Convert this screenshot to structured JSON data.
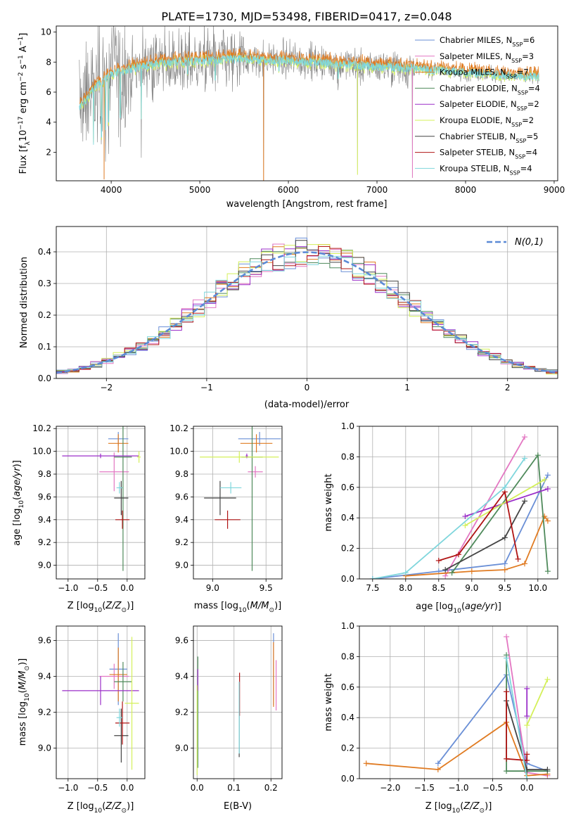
{
  "figure": {
    "title": "PLATE=1730, MJD=53498, FIBERID=0417, z=0.048"
  },
  "series_names": [
    {
      "lib": "Chabrier MILES",
      "n": "6",
      "color": "#6a8fd6"
    },
    {
      "lib": "Salpeter MILES",
      "n": "3",
      "color": "#e377c2"
    },
    {
      "lib": "Kroupa MILES",
      "n": "7",
      "color": "#e07b22"
    },
    {
      "lib": "Chabrier ELODIE",
      "n": "4",
      "color": "#4f8a5b"
    },
    {
      "lib": "Salpeter ELODIE",
      "n": "2",
      "color": "#9b2fc9"
    },
    {
      "lib": "Kroupa ELODIE",
      "n": "2",
      "color": "#d4f05a"
    },
    {
      "lib": "Chabrier STELIB",
      "n": "5",
      "color": "#444444"
    },
    {
      "lib": "Salpeter STELIB",
      "n": "4",
      "color": "#b01414"
    },
    {
      "lib": "Kroupa STELIB",
      "n": "4",
      "color": "#7fd6dc"
    }
  ],
  "chart_data": [
    {
      "id": "spectrum",
      "type": "line",
      "xlabel": "wavelength [Angstrom, rest frame]",
      "ylabel": "Flux [f_λ 10^-17 erg cm^-2 s^-1 A^-1]",
      "xlim": [
        3380,
        9040
      ],
      "ylim": [
        0.1,
        10.4
      ],
      "xticks": [
        4000,
        5000,
        6000,
        7000,
        8000,
        9000
      ],
      "yticks": [
        2,
        4,
        6,
        8,
        10
      ],
      "grid": false,
      "legend": "top-right",
      "observed_color": "#808080",
      "model_color": "#7fd6dc",
      "continuum": [
        [
          3650,
          5.0
        ],
        [
          3800,
          6.2
        ],
        [
          4000,
          7.2
        ],
        [
          4200,
          7.5
        ],
        [
          4500,
          7.9
        ],
        [
          5000,
          8.1
        ],
        [
          5500,
          8.2
        ],
        [
          6000,
          8.1
        ],
        [
          6500,
          7.9
        ],
        [
          7000,
          7.7
        ],
        [
          7400,
          7.6
        ],
        [
          7600,
          7.5
        ],
        [
          8000,
          7.3
        ],
        [
          8500,
          7.1
        ],
        [
          8830,
          7.0
        ]
      ],
      "absorption_lines": [
        [
          3800,
          2.5
        ],
        [
          3889,
          3.0
        ],
        [
          3934,
          3.5
        ],
        [
          3969,
          4.0
        ],
        [
          4102,
          4.3
        ],
        [
          4340,
          4.2
        ],
        [
          4861,
          7.2
        ],
        [
          5175,
          6.8
        ],
        [
          5893,
          7.4
        ],
        [
          6563,
          6.9
        ]
      ],
      "spikes": [
        [
          3920,
          0.2
        ],
        [
          5720,
          0.1
        ],
        [
          6780,
          0.5
        ],
        [
          7400,
          0.3
        ]
      ],
      "noise_end": 7420
    },
    {
      "id": "residual-hist",
      "type": "bar",
      "xlabel": "(data-model)/error",
      "ylabel": "Normed distribution",
      "xlim": [
        -2.5,
        2.5
      ],
      "ylim": [
        0,
        0.48
      ],
      "xticks": [
        -2,
        -1,
        0,
        1,
        2
      ],
      "yticks": [
        0.0,
        0.1,
        0.2,
        0.3,
        0.4
      ],
      "grid": true,
      "legend": "top-right",
      "reference_label": "N(0,1)",
      "bins": 44
    },
    {
      "id": "age-vs-Z",
      "type": "scatter",
      "xlabel": "Z [log10(Z/Z⊙)]",
      "ylabel": "age [log10(age/yr)]",
      "xlim": [
        -1.2,
        0.3
      ],
      "ylim": [
        8.88,
        10.22
      ],
      "xticks": [
        -1.0,
        -0.5,
        0.0
      ],
      "yticks": [
        9.0,
        9.2,
        9.4,
        9.6,
        9.8,
        10.0,
        10.2
      ],
      "grid": true,
      "points": [
        {
          "s": 0,
          "x": -0.15,
          "dx": 0.17,
          "y": 10.11,
          "dy": 0.06
        },
        {
          "s": 1,
          "x": -0.22,
          "dx": 0.25,
          "y": 9.82,
          "dy": 0.17
        },
        {
          "s": 2,
          "x": -0.15,
          "dx": 0.17,
          "y": 10.07,
          "dy": 0.08
        },
        {
          "s": 3,
          "x": -0.07,
          "dx": 0.15,
          "y": 9.95,
          "dy": 1.0
        },
        {
          "s": 4,
          "x": -0.45,
          "dx": 0.65,
          "y": 9.96,
          "dy": 0.02
        },
        {
          "s": 5,
          "x": 0.2,
          "dx": 0.03,
          "y": 9.95,
          "dy": 0.05
        },
        {
          "s": 6,
          "x": -0.1,
          "dx": 0.12,
          "y": 9.59,
          "dy": 0.15
        },
        {
          "s": 7,
          "x": -0.08,
          "dx": 0.12,
          "y": 9.4,
          "dy": 0.08
        },
        {
          "s": 8,
          "x": -0.13,
          "dx": 0.05,
          "y": 9.68,
          "dy": 0.05
        }
      ]
    },
    {
      "id": "age-vs-mass",
      "type": "scatter",
      "xlabel": "mass [log10(M/M⊙)]",
      "ylabel": "",
      "xlim": [
        8.82,
        9.65
      ],
      "ylim": [
        8.88,
        10.22
      ],
      "xticks": [
        9.0,
        9.5
      ],
      "yticks": [
        9.0,
        9.2,
        9.4,
        9.6,
        9.8,
        10.0,
        10.2
      ],
      "grid": true,
      "points": [
        {
          "s": 0,
          "x": 9.44,
          "dx": 0.2,
          "y": 10.11,
          "dy": 0.06
        },
        {
          "s": 1,
          "x": 9.4,
          "dx": 0.07,
          "y": 9.82,
          "dy": 0.05
        },
        {
          "s": 2,
          "x": 9.41,
          "dx": 0.15,
          "y": 10.07,
          "dy": 0.08
        },
        {
          "s": 3,
          "x": 9.37,
          "dx": 0.1,
          "y": 9.95,
          "dy": 1.0
        },
        {
          "s": 4,
          "x": 9.32,
          "dx": 0.01,
          "y": 9.96,
          "dy": 0.02
        },
        {
          "s": 5,
          "x": 9.25,
          "dx": 0.37,
          "y": 9.95,
          "dy": 0.05
        },
        {
          "s": 6,
          "x": 9.07,
          "dx": 0.15,
          "y": 9.59,
          "dy": 0.15
        },
        {
          "s": 7,
          "x": 9.14,
          "dx": 0.12,
          "y": 9.4,
          "dy": 0.08
        },
        {
          "s": 8,
          "x": 9.17,
          "dx": 0.1,
          "y": 9.68,
          "dy": 0.05
        }
      ]
    },
    {
      "id": "mass-weight-vs-age",
      "type": "line",
      "xlabel": "age [log10(age/yr)]",
      "ylabel": "mass weight",
      "xlim": [
        7.3,
        10.3
      ],
      "ylim": [
        0.0,
        1.0
      ],
      "xticks": [
        7.5,
        8.0,
        8.5,
        9.0,
        9.5,
        10.0
      ],
      "yticks": [
        0.0,
        0.2,
        0.4,
        0.6,
        0.8,
        1.0
      ],
      "grid": true,
      "series": [
        {
          "s": 0,
          "x": [
            7.5,
            8.5,
            9.5,
            10.15
          ],
          "y": [
            0.0,
            0.05,
            0.1,
            0.68
          ]
        },
        {
          "s": 1,
          "x": [
            8.6,
            9.8
          ],
          "y": [
            0.02,
            0.93
          ]
        },
        {
          "s": 2,
          "x": [
            8.0,
            9.0,
            9.5,
            9.8,
            10.1,
            10.15
          ],
          "y": [
            0.02,
            0.05,
            0.06,
            0.1,
            0.41,
            0.38
          ]
        },
        {
          "s": 3,
          "x": [
            8.7,
            10.0,
            10.15
          ],
          "y": [
            0.04,
            0.81,
            0.05
          ]
        },
        {
          "s": 4,
          "x": [
            8.9,
            10.15
          ],
          "y": [
            0.41,
            0.59
          ]
        },
        {
          "s": 5,
          "x": [
            8.9,
            10.1
          ],
          "y": [
            0.35,
            0.65
          ]
        },
        {
          "s": 6,
          "x": [
            8.6,
            9.5,
            9.8
          ],
          "y": [
            0.06,
            0.27,
            0.51
          ]
        },
        {
          "s": 7,
          "x": [
            8.5,
            8.8,
            9.5,
            9.7
          ],
          "y": [
            0.12,
            0.16,
            0.57,
            0.13
          ]
        },
        {
          "s": 8,
          "x": [
            7.5,
            8.0,
            9.5,
            9.8
          ],
          "y": [
            0.0,
            0.04,
            0.6,
            0.79
          ]
        }
      ]
    },
    {
      "id": "mass-vs-Z",
      "type": "scatter",
      "xlabel": "Z [log10(Z/Z⊙)]",
      "ylabel": "mass [log10(M/M⊙)]",
      "xlim": [
        -1.2,
        0.3
      ],
      "ylim": [
        8.83,
        9.68
      ],
      "xticks": [
        -1.0,
        -0.5,
        0.0
      ],
      "yticks": [
        9.0,
        9.2,
        9.4,
        9.6
      ],
      "grid": true,
      "points": [
        {
          "s": 0,
          "x": -0.15,
          "dx": 0.15,
          "y": 9.44,
          "dy": 0.2
        },
        {
          "s": 1,
          "x": -0.22,
          "dx": 0.25,
          "y": 9.4,
          "dy": 0.07
        },
        {
          "s": 2,
          "x": -0.15,
          "dx": 0.15,
          "y": 9.41,
          "dy": 0.15
        },
        {
          "s": 3,
          "x": -0.07,
          "dx": 0.15,
          "y": 9.37,
          "dy": 0.11
        },
        {
          "s": 4,
          "x": -0.45,
          "dx": 0.65,
          "y": 9.32,
          "dy": 0.08
        },
        {
          "s": 5,
          "x": 0.08,
          "dx": 0.12,
          "y": 9.25,
          "dy": 0.37
        },
        {
          "s": 6,
          "x": -0.1,
          "dx": 0.12,
          "y": 9.07,
          "dy": 0.15
        },
        {
          "s": 7,
          "x": -0.08,
          "dx": 0.12,
          "y": 9.14,
          "dy": 0.12
        },
        {
          "s": 8,
          "x": -0.13,
          "dx": 0.05,
          "y": 9.17,
          "dy": 0.05
        }
      ]
    },
    {
      "id": "mass-vs-ebv",
      "type": "scatter",
      "xlabel": "E(B-V)",
      "ylabel": "",
      "xlim": [
        -0.01,
        0.23
      ],
      "ylim": [
        8.83,
        9.68
      ],
      "xticks": [
        0.0,
        0.1,
        0.2
      ],
      "yticks": [
        9.0,
        9.2,
        9.4,
        9.6
      ],
      "grid": true,
      "points": [
        {
          "s": 0,
          "x": 0.207,
          "dx": 0.0,
          "y": 9.44,
          "dy": 0.2
        },
        {
          "s": 1,
          "x": 0.214,
          "dx": 0.0,
          "y": 9.35,
          "dy": 0.14
        },
        {
          "s": 2,
          "x": 0.207,
          "dx": 0.0,
          "y": 9.41,
          "dy": 0.18
        },
        {
          "s": 3,
          "x": 0.002,
          "dx": 0.0,
          "y": 9.2,
          "dy": 0.31
        },
        {
          "s": 4,
          "x": 0.002,
          "dx": 0.0,
          "y": 9.38,
          "dy": 0.06
        },
        {
          "s": 5,
          "x": 0.0,
          "dx": 0.0,
          "y": 9.1,
          "dy": 0.25
        },
        {
          "s": 6,
          "x": 0.114,
          "dx": 0.0,
          "y": 9.1,
          "dy": 0.15
        },
        {
          "s": 7,
          "x": 0.115,
          "dx": 0.0,
          "y": 9.3,
          "dy": 0.12
        },
        {
          "s": 8,
          "x": 0.114,
          "dx": 0.0,
          "y": 9.17,
          "dy": 0.2
        }
      ]
    },
    {
      "id": "mass-weight-vs-Z",
      "type": "line",
      "xlabel": "Z [log10(Z/Z⊙)]",
      "ylabel": "mass weight",
      "xlim": [
        -2.45,
        0.45
      ],
      "ylim": [
        0.0,
        1.0
      ],
      "xticks": [
        -2.0,
        -1.5,
        -1.0,
        -0.5,
        0.0
      ],
      "yticks": [
        0.0,
        0.2,
        0.4,
        0.6,
        0.8,
        1.0
      ],
      "grid": true,
      "series": [
        {
          "s": 0,
          "x": [
            -1.3,
            -0.3,
            0.0,
            0.3
          ],
          "y": [
            0.1,
            0.68,
            0.1,
            0.05
          ]
        },
        {
          "s": 1,
          "x": [
            -0.3,
            0.0,
            0.3
          ],
          "y": [
            0.93,
            0.04,
            0.02
          ]
        },
        {
          "s": 2,
          "x": [
            -2.35,
            -1.3,
            -0.3,
            0.0,
            0.3
          ],
          "y": [
            0.1,
            0.06,
            0.37,
            0.02,
            0.03
          ]
        },
        {
          "s": 3,
          "x": [
            -0.3,
            -0.3,
            0.0,
            0.3
          ],
          "y": [
            0.81,
            0.05,
            0.05,
            0.05
          ]
        },
        {
          "s": 4,
          "x": [
            0.0,
            0.0
          ],
          "y": [
            0.59,
            0.41
          ]
        },
        {
          "s": 5,
          "x": [
            0.0,
            0.3
          ],
          "y": [
            0.35,
            0.65
          ]
        },
        {
          "s": 6,
          "x": [
            -0.3,
            0.0,
            0.3
          ],
          "y": [
            0.51,
            0.06,
            0.06
          ]
        },
        {
          "s": 7,
          "x": [
            -0.3,
            -0.3,
            0.0,
            0.0
          ],
          "y": [
            0.57,
            0.13,
            0.12,
            0.16
          ]
        },
        {
          "s": 8,
          "x": [
            -0.3,
            0.0
          ],
          "y": [
            0.79,
            0.0
          ]
        }
      ]
    }
  ]
}
